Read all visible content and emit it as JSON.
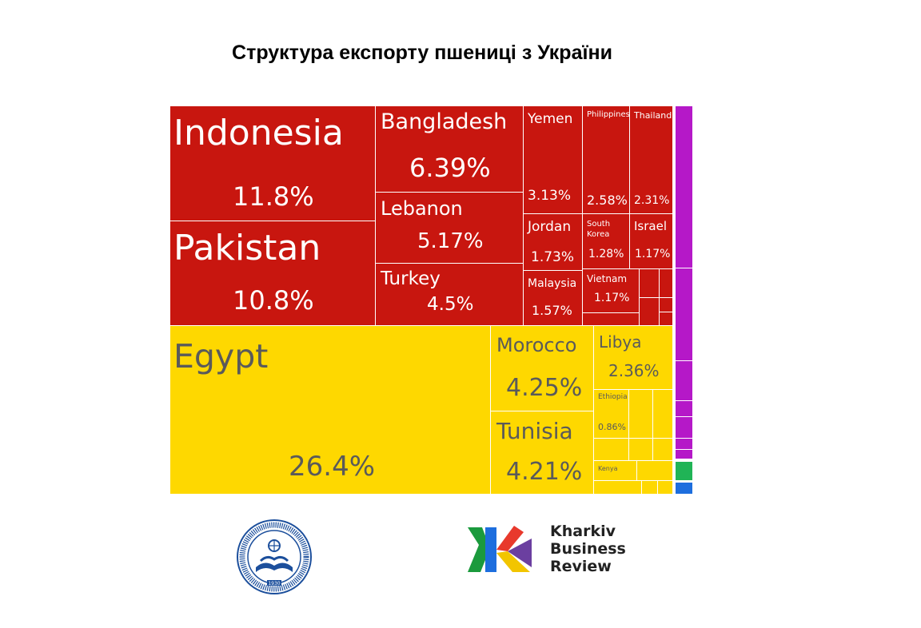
{
  "chart_data": {
    "type": "treemap",
    "title": "Структура експорту пшениці з України",
    "groups": [
      {
        "name": "",
        "color": "#c8160f",
        "label_color": "#ffffff"
      },
      {
        "name": "",
        "color": "#fed800",
        "label_color": "#5a5a5a"
      },
      {
        "name": "",
        "color": "#b518c8",
        "label_color": "#ffffff"
      },
      {
        "name": "",
        "color": "#20b456",
        "label_color": "#ffffff"
      },
      {
        "name": "",
        "color": "#1d6ede",
        "label_color": "#ffffff"
      }
    ],
    "items": [
      {
        "name": "Indonesia",
        "value": "11.8%",
        "group": 0
      },
      {
        "name": "Pakistan",
        "value": "10.8%",
        "group": 0
      },
      {
        "name": "Bangladesh",
        "value": "6.39%",
        "group": 0
      },
      {
        "name": "Lebanon",
        "value": "5.17%",
        "group": 0
      },
      {
        "name": "Turkey",
        "value": "4.5%",
        "group": 0
      },
      {
        "name": "Yemen",
        "value": "3.13%",
        "group": 0
      },
      {
        "name": "Philippines",
        "value": "2.58%",
        "group": 0
      },
      {
        "name": "Thailand",
        "value": "2.31%",
        "group": 0
      },
      {
        "name": "Jordan",
        "value": "1.73%",
        "group": 0
      },
      {
        "name": "South Korea",
        "value": "1.28%",
        "group": 0
      },
      {
        "name": "Israel",
        "value": "1.17%",
        "group": 0
      },
      {
        "name": "Malaysia",
        "value": "1.57%",
        "group": 0
      },
      {
        "name": "Vietnam",
        "value": "1.17%",
        "group": 0
      },
      {
        "name": "Egypt",
        "value": "26.4%",
        "group": 1
      },
      {
        "name": "Morocco",
        "value": "4.25%",
        "group": 1
      },
      {
        "name": "Tunisia",
        "value": "4.21%",
        "group": 1
      },
      {
        "name": "Libya",
        "value": "2.36%",
        "group": 1
      },
      {
        "name": "Ethiopia",
        "value": "0.86%",
        "group": 1
      },
      {
        "name": "Kenya",
        "value": "",
        "group": 1
      }
    ]
  },
  "logos": {
    "university_icon": "university-seal-icon",
    "university_year": "1930",
    "kbr_icon": "kharkiv-business-review-mark-icon",
    "kbr_line1": "Kharkiv",
    "kbr_line2": "Business",
    "kbr_line3": "Review"
  }
}
